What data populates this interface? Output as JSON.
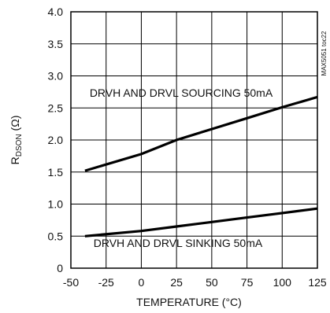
{
  "chart_data": {
    "type": "line",
    "title": "",
    "xlabel": "TEMPERATURE (°C)",
    "ylabel_main": "R",
    "ylabel_sub": "DSON",
    "ylabel_unit": " (Ω)",
    "xlim": [
      -50,
      125
    ],
    "ylim": [
      0,
      4.0
    ],
    "grid": true,
    "x_ticks": [
      -50,
      -25,
      0,
      25,
      50,
      75,
      100,
      125
    ],
    "x_tick_labels": [
      "-50",
      "-25",
      "0",
      "25",
      "50",
      "75",
      "100",
      "125"
    ],
    "y_ticks": [
      0,
      0.5,
      1.0,
      1.5,
      2.0,
      2.5,
      3.0,
      3.5,
      4.0
    ],
    "y_tick_labels": [
      "0",
      "0.5",
      "1.0",
      "1.5",
      "2.0",
      "2.5",
      "3.0",
      "3.5",
      "4.0"
    ],
    "series": [
      {
        "label": "DRVH AND DRVL SOURCING 50mA",
        "x": [
          -40,
          0,
          25,
          50,
          75,
          100,
          125
        ],
        "y": [
          1.52,
          1.78,
          2.0,
          2.17,
          2.34,
          2.51,
          2.67
        ]
      },
      {
        "label": "DRVH AND DRVL SINKING 50mA",
        "x": [
          -40,
          0,
          25,
          50,
          75,
          100,
          125
        ],
        "y": [
          0.5,
          0.58,
          0.65,
          0.72,
          0.79,
          0.86,
          0.93
        ]
      }
    ],
    "watermark": "MAX5051 toc22"
  }
}
